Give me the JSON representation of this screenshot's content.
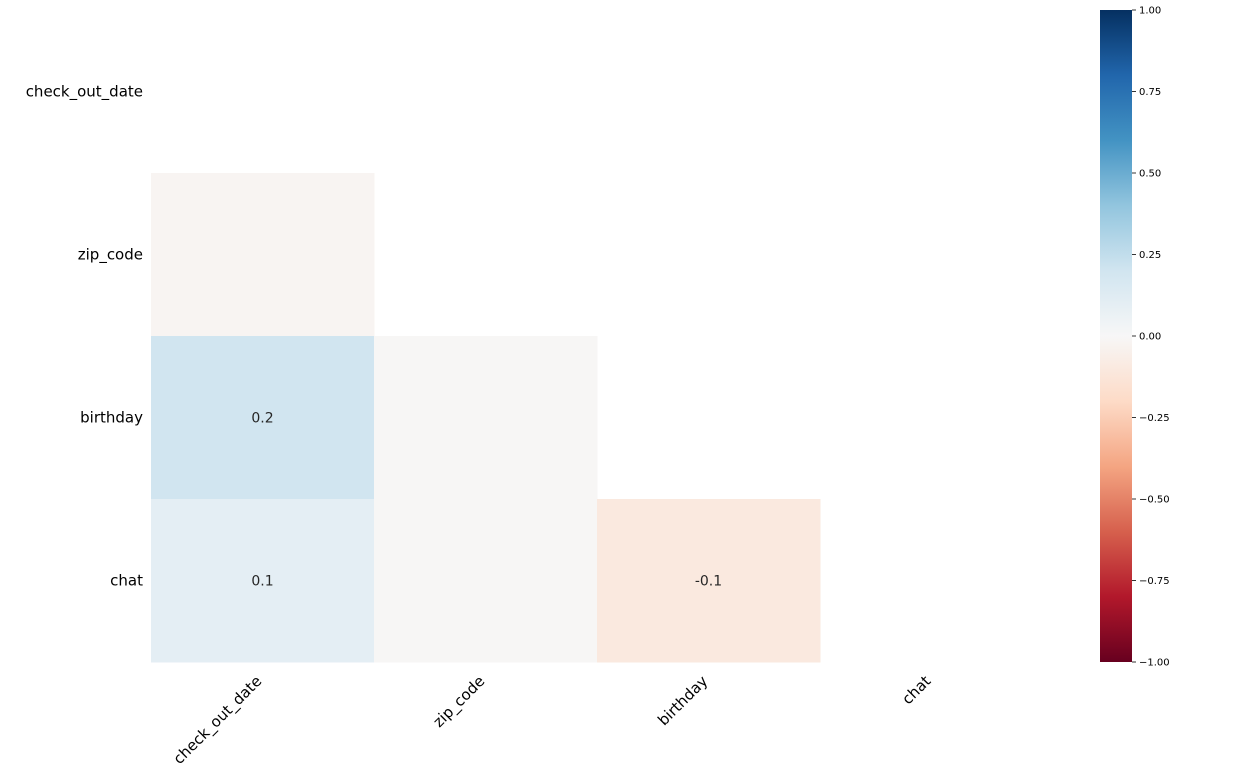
{
  "chart_data": {
    "type": "heatmap",
    "title": "",
    "xlabel": "",
    "ylabel": "",
    "rows": [
      "check_out_date",
      "zip_code",
      "birthday",
      "chat"
    ],
    "columns": [
      "check_out_date",
      "zip_code",
      "birthday",
      "chat"
    ],
    "mask": "upper-triangle-and-diagonal",
    "cells": [
      {
        "row": "zip_code",
        "col": "check_out_date",
        "value": -0.02,
        "label": ""
      },
      {
        "row": "birthday",
        "col": "check_out_date",
        "value": 0.2,
        "label": "0.2"
      },
      {
        "row": "birthday",
        "col": "zip_code",
        "value": -0.01,
        "label": ""
      },
      {
        "row": "chat",
        "col": "check_out_date",
        "value": 0.1,
        "label": "0.1"
      },
      {
        "row": "chat",
        "col": "zip_code",
        "value": -0.01,
        "label": ""
      },
      {
        "row": "chat",
        "col": "birthday",
        "value": -0.1,
        "label": "-0.1"
      }
    ],
    "colorbar": {
      "range": [
        -1,
        1
      ],
      "ticks": [
        1.0,
        0.75,
        0.5,
        0.25,
        0.0,
        -0.25,
        -0.5,
        -0.75,
        -1.0
      ],
      "tick_labels": [
        "1.00",
        "0.75",
        "0.50",
        "0.25",
        "0.00",
        "−0.25",
        "−0.50",
        "−0.75",
        "−1.00"
      ],
      "colormap": "RdBu",
      "colors": [
        "#67001f",
        "#b2182b",
        "#d6604d",
        "#f4a582",
        "#fddbc7",
        "#f7f7f7",
        "#d1e5f0",
        "#92c5de",
        "#4393c3",
        "#2166ac",
        "#053061"
      ]
    },
    "grid": false,
    "legend": "right"
  }
}
